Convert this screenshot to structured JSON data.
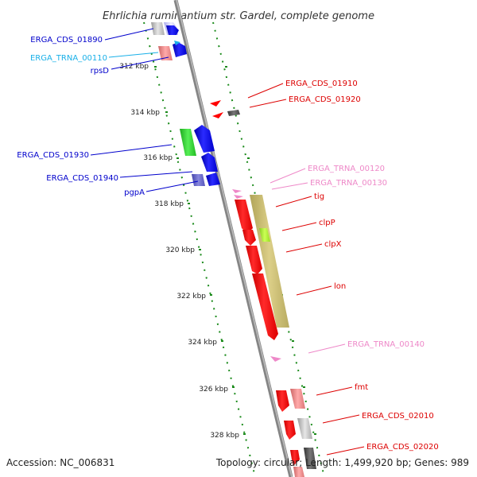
{
  "title": "Ehrlichia ruminantium str. Gardel, complete genome",
  "footer": {
    "accession": "Accession: NC_006831",
    "topology": "Topology: circular; Length: 1,499,920 bp; Genes: 989"
  },
  "colors": {
    "forward_cds": "#0000ee",
    "reverse_cds": "#ff0000",
    "trna_forward": "#1ab0e8",
    "trna_reverse": "#ee88c8",
    "backbone": "#888888",
    "tick_marks": "#1a8a1a",
    "cog_band": "#c8bb6e"
  },
  "ticks": [
    "312 kbp",
    "314 kbp",
    "316 kbp",
    "318 kbp",
    "320 kbp",
    "322 kbp",
    "324 kbp",
    "326 kbp",
    "328 kbp"
  ],
  "left_labels": [
    {
      "text": "ERGA_CDS_01890",
      "color": "#0000cc"
    },
    {
      "text": "ERGA_TRNA_00110",
      "color": "#1ab0e8"
    },
    {
      "text": "rpsD",
      "color": "#0000cc"
    },
    {
      "text": "ERGA_CDS_01930",
      "color": "#0000cc"
    },
    {
      "text": "ERGA_CDS_01940",
      "color": "#0000cc"
    },
    {
      "text": "pgpA",
      "color": "#0000cc"
    }
  ],
  "right_labels": [
    {
      "text": "ERGA_CDS_01910",
      "color": "#dd0000"
    },
    {
      "text": "ERGA_CDS_01920",
      "color": "#dd0000"
    },
    {
      "text": "ERGA_TRNA_00120",
      "color": "#ee88c8"
    },
    {
      "text": "ERGA_TRNA_00130",
      "color": "#ee88c8"
    },
    {
      "text": "tig",
      "color": "#dd0000"
    },
    {
      "text": "clpP",
      "color": "#dd0000"
    },
    {
      "text": "clpX",
      "color": "#dd0000"
    },
    {
      "text": "lon",
      "color": "#dd0000"
    },
    {
      "text": "ERGA_TRNA_00140",
      "color": "#ee88c8"
    },
    {
      "text": "fmt",
      "color": "#dd0000"
    },
    {
      "text": "ERGA_CDS_02010",
      "color": "#dd0000"
    },
    {
      "text": "ERGA_CDS_02020",
      "color": "#dd0000"
    }
  ]
}
